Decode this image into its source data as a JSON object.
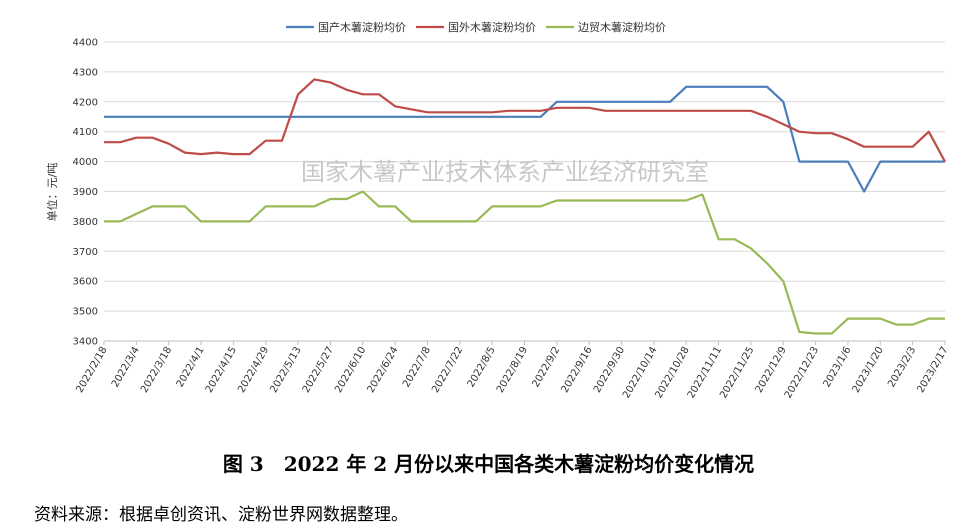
{
  "chart_data": {
    "type": "line",
    "ylabel": "单位：元/吨",
    "watermark": "国家木薯产业技术体系产业经济研究室",
    "ylim": [
      3400,
      4400
    ],
    "yticks": [
      3400,
      3500,
      3600,
      3700,
      3800,
      3900,
      4000,
      4100,
      4200,
      4300,
      4400
    ],
    "grid": true,
    "legend": "top-center",
    "tick_labels": [
      "2022/2/18",
      "2022/3/4",
      "2022/3/18",
      "2022/4/1",
      "2022/4/15",
      "2022/4/29",
      "2022/5/13",
      "2022/5/27",
      "2022/6/10",
      "2022/6/24",
      "2022/7/8",
      "2022/7/22",
      "2022/8/5",
      "2022/8/19",
      "2022/9/2",
      "2022/9/16",
      "2022/9/30",
      "2022/10/14",
      "2022/10/28",
      "2022/11/11",
      "2022/11/25",
      "2022/12/9",
      "2022/12/23",
      "2023/1/6",
      "2023/1/20",
      "2023/2/3",
      "2023/2/17"
    ],
    "n_points": 53,
    "series": [
      {
        "name": "国产木薯淀粉均价",
        "color": "#4a7ebb",
        "values": [
          4150,
          4150,
          4150,
          4150,
          4150,
          4150,
          4150,
          4150,
          4150,
          4150,
          4150,
          4150,
          4150,
          4150,
          4150,
          4150,
          4150,
          4150,
          4150,
          4150,
          4150,
          4150,
          4150,
          4150,
          4150,
          4150,
          4150,
          4150,
          4200,
          4200,
          4200,
          4200,
          4200,
          4200,
          4200,
          4200,
          4250,
          4250,
          4250,
          4250,
          4250,
          4250,
          4200,
          4000,
          4000,
          4000,
          4000,
          3900,
          4000,
          4000,
          4000,
          4000,
          4000
        ]
      },
      {
        "name": "国外木薯淀粉均价",
        "color": "#be4b48",
        "values": [
          4065,
          4065,
          4080,
          4080,
          4060,
          4030,
          4025,
          4030,
          4025,
          4025,
          4070,
          4070,
          4225,
          4275,
          4265,
          4240,
          4225,
          4225,
          4185,
          4175,
          4165,
          4165,
          4165,
          4165,
          4165,
          4170,
          4170,
          4170,
          4180,
          4180,
          4180,
          4170,
          4170,
          4170,
          4170,
          4170,
          4170,
          4170,
          4170,
          4170,
          4170,
          4150,
          4125,
          4100,
          4095,
          4095,
          4075,
          4050,
          4050,
          4050,
          4050,
          4100,
          4000
        ]
      },
      {
        "name": "边贸木薯淀粉均价",
        "color": "#98b954",
        "values": [
          3800,
          3800,
          3825,
          3850,
          3850,
          3850,
          3800,
          3800,
          3800,
          3800,
          3850,
          3850,
          3850,
          3850,
          3875,
          3875,
          3900,
          3850,
          3850,
          3800,
          3800,
          3800,
          3800,
          3800,
          3850,
          3850,
          3850,
          3850,
          3870,
          3870,
          3870,
          3870,
          3870,
          3870,
          3870,
          3870,
          3870,
          3890,
          3740,
          3740,
          3710,
          3660,
          3600,
          3430,
          3425,
          3425,
          3475,
          3475,
          3475,
          3455,
          3455,
          3475,
          3475
        ]
      }
    ]
  },
  "caption": "图 3　2022 年 2 月份以来中国各类木薯淀粉均价变化情况",
  "source": "资料来源：根据卓创资讯、淀粉世界网数据整理。"
}
